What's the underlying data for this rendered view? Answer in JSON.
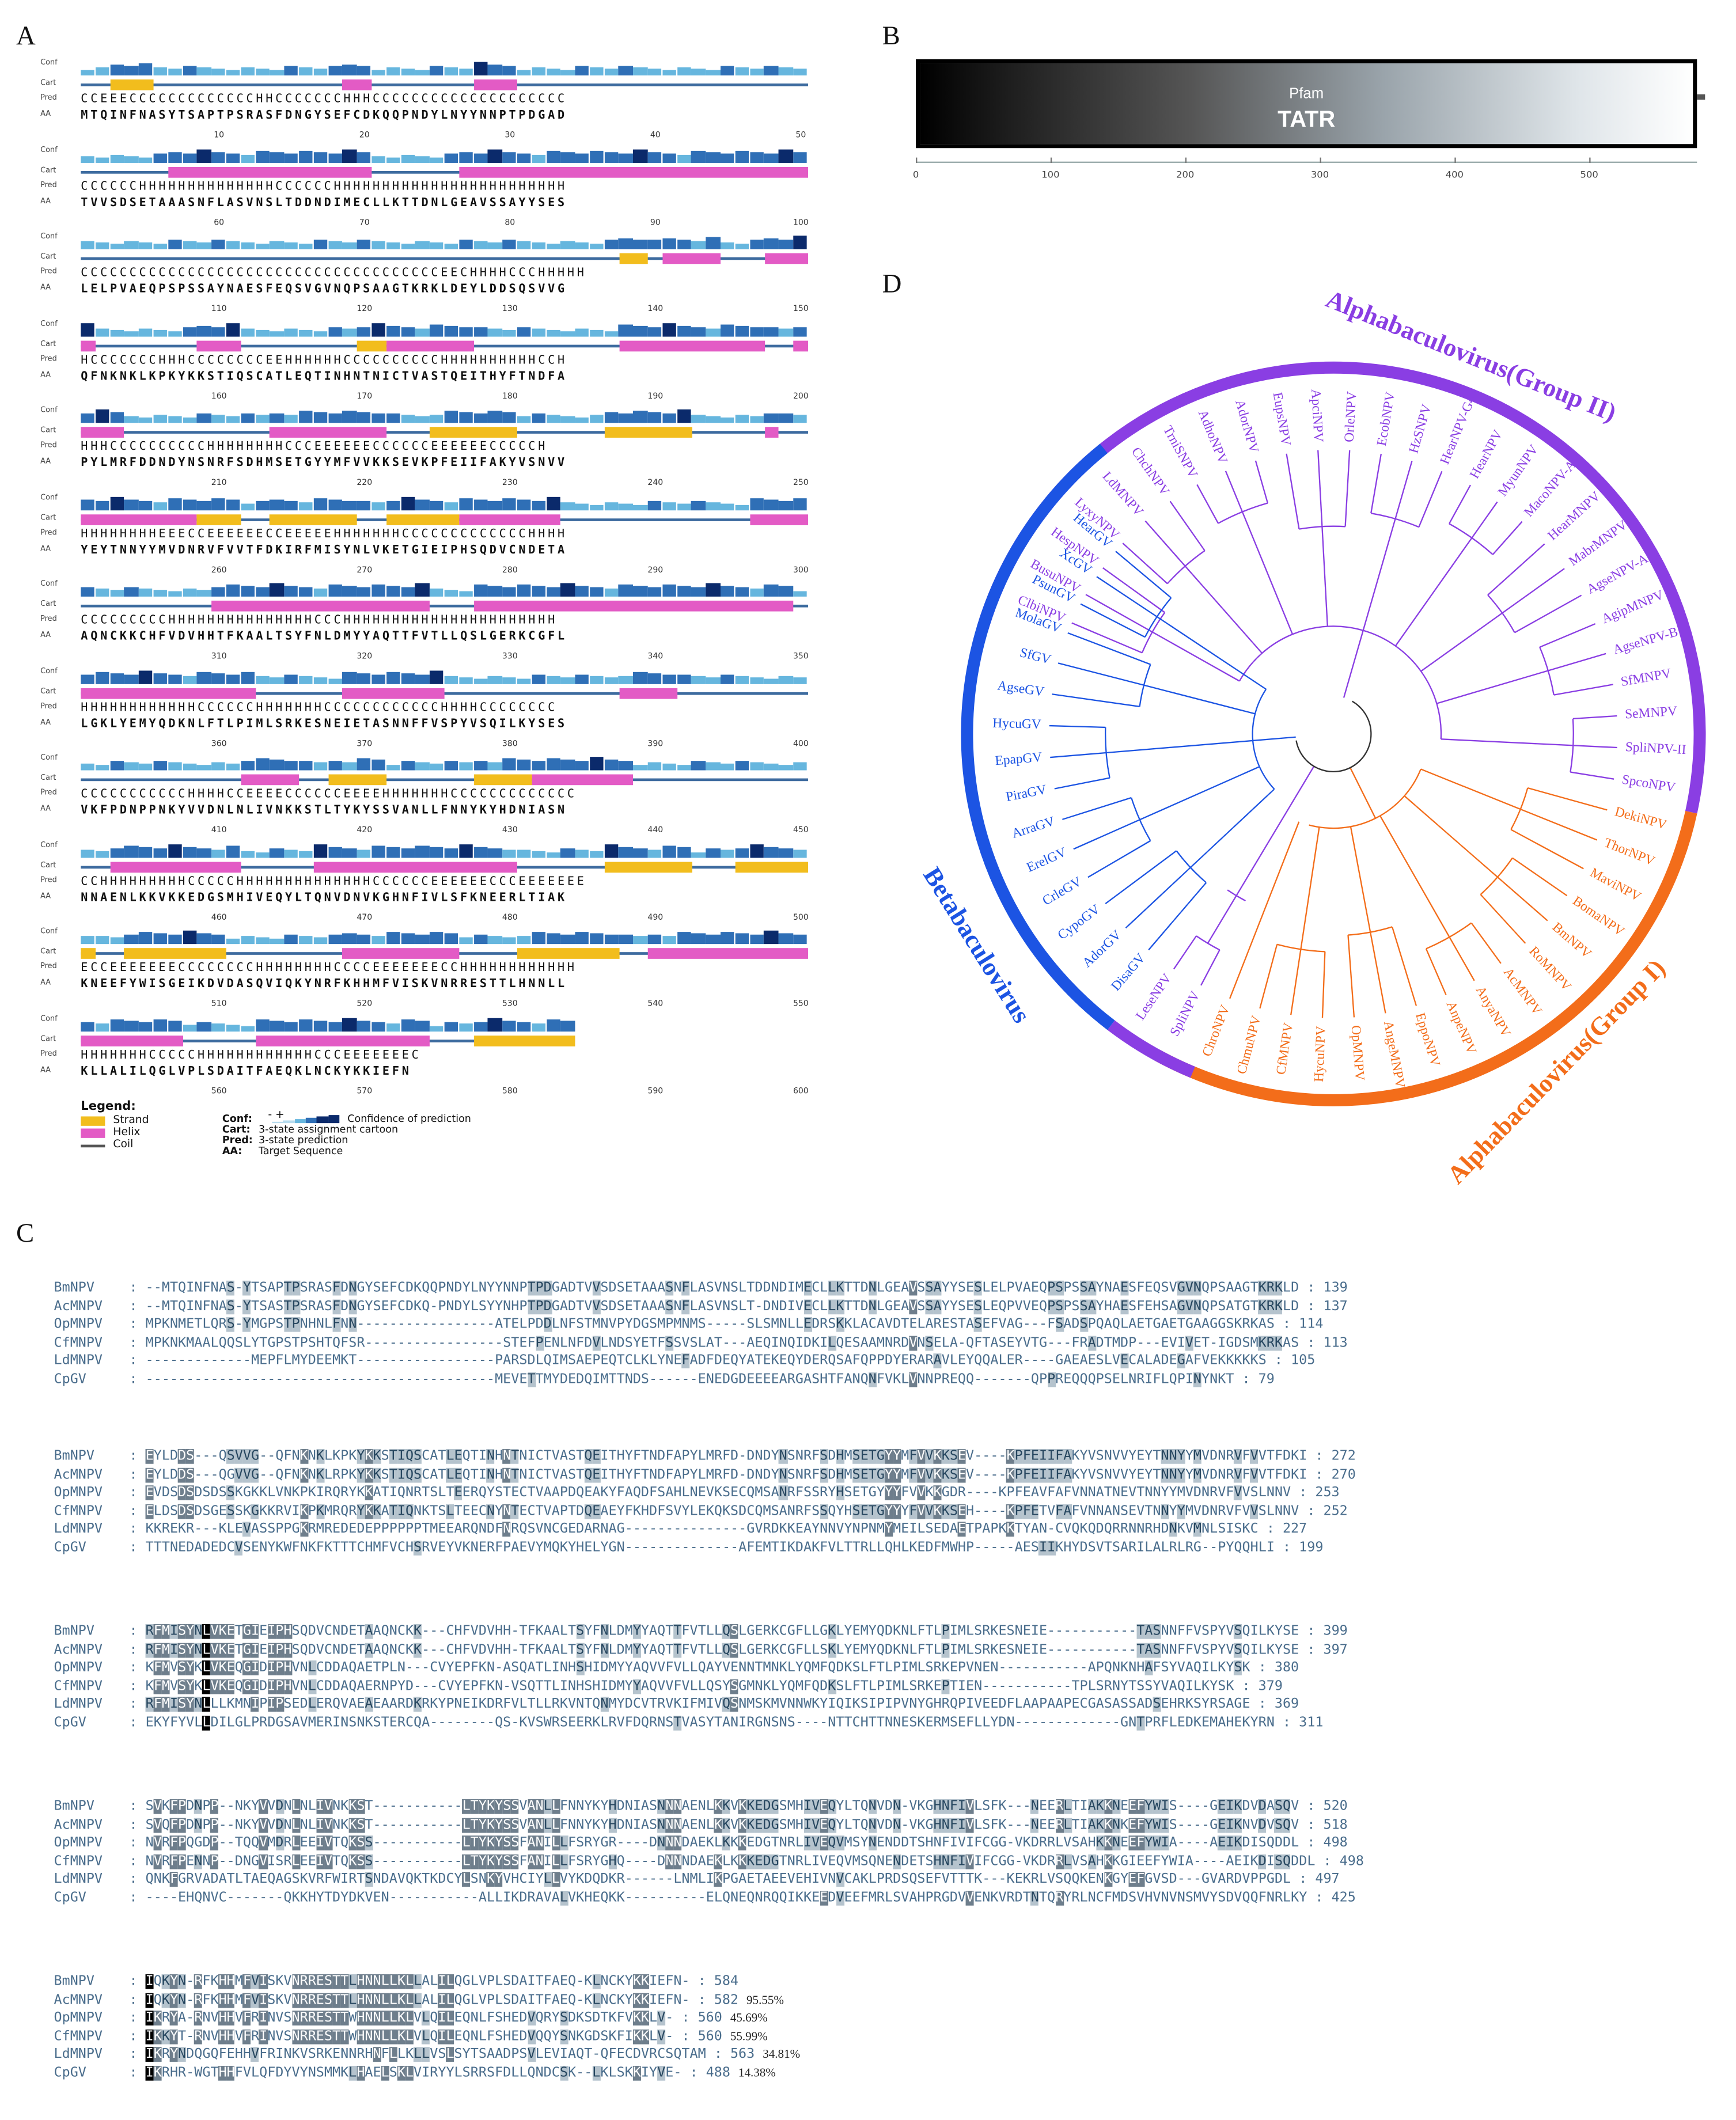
{
  "panels": {
    "a": "A",
    "b": "B",
    "c": "C",
    "d": "D"
  },
  "psipred": {
    "row_labels": {
      "conf": "Conf",
      "cart": "Cart",
      "pred": "Pred",
      "aa": "AA"
    },
    "rows": [
      {
        "pred": "CCEEECCCCCCCCCCCCCHHCCCCCCCHHHCCCCCCCCCCCCCCCCCCCC",
        "aa": "MTQINFNASYTSAPTPSRASFDNGYSEFCDKQQPNDYLNYYNNPTPDGAD",
        "ticks": [
          "10",
          "20",
          "30",
          "40",
          "50"
        ]
      },
      {
        "pred": "CCCCCCHHHHHHHHHHHHHHCCCCCCHHHHHHHHHHHHHHHHHHHHHHHH",
        "aa": "TVVSDSETAAASNFLASVNSLTDDNDIMECLLKTTDNLGEAVSSAYYSES",
        "ticks": [
          "60",
          "70",
          "80",
          "90",
          "100"
        ]
      },
      {
        "pred": "CCCCCCCCCCCCCCCCCCCCCCCCCCCCCCCCCCCCCEECHHHHCCCHHHHH",
        "aa": "LELPVAEQPSPSSAYNAESFEQSVGVNQPSAAGTKRKLDEYLDDSQSVVG",
        "ticks": [
          "110",
          "120",
          "130",
          "140",
          "150"
        ]
      },
      {
        "pred": "HCCCCCCCHHHCCCCCCCCEEHHHHHHCCCCCCCCCCHHHHHHHHHHCCH",
        "aa": "QFNKNKLKPKYKKSTIQSCATLEQTINHNTNICTVASTQEITHYFTNDFA",
        "ticks": [
          "160",
          "170",
          "180",
          "190",
          "200"
        ]
      },
      {
        "pred": "HHHCCCCCCCCCCHHHHHHHHCCCEEEEEECCCCCCEEEEEECCCCCH",
        "aa": "PYLMRFDDNDYNSNRFSDHMSETGYYMFVVKKSEVKPFEIIFAKYVSNVV",
        "ticks": [
          "210",
          "220",
          "230",
          "240",
          "250"
        ]
      },
      {
        "pred": "HHHHHHHHEEECCEEEEEECCEEEEEHHHHHHHCCCCCCCCCCCCCHHHH",
        "aa": "YEYTNNYYMVDNRVFVVTFDKIRFMISYNLVKETGIEIPHSQDVCNDETA",
        "ticks": [
          "260",
          "270",
          "280",
          "290",
          "300"
        ]
      },
      {
        "pred": "CCCCCCCCCHHHHHHHHHHHHHHHCCCHHHHHHHHHHHHHHHHHHHHHH",
        "aa": "AQNCKKCHFVDVHHTFKAALTSYFNLDMYYAQTTFVTLLQSLGERKCGFL",
        "ticks": [
          "310",
          "320",
          "330",
          "340",
          "350"
        ]
      },
      {
        "pred": "HHHHHHHHHHHHCCCCCCHHHHHHHCCCCCCCCCCCCHHHHCCCCCCCC",
        "aa": "LGKLYEMYQDKNLFTLPIMLSRKESNEIETASNNFFVSPYVSQILKYSES",
        "ticks": [
          "360",
          "370",
          "380",
          "390",
          "400"
        ]
      },
      {
        "pred": "CCCCCCCCCCCHHHHCCEEEECCCCCCEEEEHHHHHHHCCCCCCCCCCCCC",
        "aa": "VKFPDNPPNKYVVDNLNLIVNKKSTLTYKYSSVANLLFNNYKYHDNIASN",
        "ticks": [
          "410",
          "420",
          "430",
          "440",
          "450"
        ]
      },
      {
        "pred": "CCHHHHHHHHHCCCCCHHHHHHHHHHHHHHCCCCCCEEEEEECCCEEEEEEE",
        "aa": "NNAENLKKVKKEDGSMHIVEQYLTQNVDNVKGHNFIVLSFKNEERLTIAK",
        "ticks": [
          "460",
          "470",
          "480",
          "490",
          "500"
        ]
      },
      {
        "pred": "ECCEEEEEEECCCCCCCCHHHHHHHHCCCCEEEEEEECCHHHHHHHHHHHH",
        "aa": "KNEEFYWISGEIKDVDASQVIQKYNRFKHHMFVISKVNRRESTTLHNNLL",
        "ticks": [
          "510",
          "520",
          "530",
          "540",
          "550"
        ]
      },
      {
        "pred": "HHHHHHHCCCCCHHHHHHHHHHHHCCCEEEEEEEC",
        "aa": "KLLALILQGLVPLSDAITFAEQKLNCKYKKIEFN",
        "ticks": [
          "560",
          "570",
          "580",
          "590",
          "600"
        ]
      }
    ],
    "legend": {
      "title": "Legend:",
      "items": [
        {
          "label": "Strand",
          "color": "#f2bd1d"
        },
        {
          "label": "Helix",
          "color": "#e35bc5"
        },
        {
          "label": "Coil",
          "color": "#555555"
        }
      ],
      "keys": [
        {
          "k": "Conf:",
          "v": "Confidence of prediction"
        },
        {
          "k": "Cart:",
          "v": "3-state assignment cartoon"
        },
        {
          "k": "Pred:",
          "v": "3-state prediction"
        },
        {
          "k": "AA:",
          "v": "Target Sequence"
        }
      ],
      "conf_signs": "- +"
    }
  },
  "domain": {
    "source": "Pfam",
    "name": "TATR",
    "axis_ticks": [
      "0",
      "100",
      "200",
      "300",
      "400",
      "500"
    ],
    "axis_max": 580
  },
  "alignment": {
    "blocks": [
      {
        "rows": [
          {
            "name": "BmNPV",
            "seq": "--MTQINFNAS-YTSAPTPSRASFDNGYSEFCDKQQPNDYLNYYNNPTPDGADTVVSDSETAAASNFLASVNSLTDDNDIMECLLKTTDNLGEAVSSAYYSESLELPVAEQPSPSSAYNAESFEQSVGVNQPSAAGTKRKLD",
            "end": "139"
          },
          {
            "name": "AcMNPV",
            "seq": "--MTQINFNAS-YTSASTPSRASFDNGYSEFCDKQ-PNDYLSYYNHPTPDGADTVVSDSETAAASNFLASVNSLT-DNDIVECLLKTTDNLGEAVSSAYYSESLEQPVVEQPSPSSAYHAESFEHSAGVNQPSATGTKRKLD",
            "end": "137"
          },
          {
            "name": "OpMNPV",
            "seq": "MPKNMETLQRS-YMGPSTPNHNLFNN-----------------ATELPDDLNFSTMNVPYDGSMPMNMS-----SLSMNLLEDRSKKLACAVDTELARESTASEFVAG---FSADSPQAQLAETGAETGAAGGSKRKAS",
            "end": "114"
          },
          {
            "name": "CfMNPV",
            "seq": "MPKNKMAALQQSLYTGPSTPSHTQFSR-----------------STEFPENLNFDVLNDSYETFSSVSLAT---AEQINQIDKILQESAAMNRDVNSELA-QFTASEYVTG---FRADTMDP---EVIVET-IGDSMKRKAS",
            "end": "113"
          },
          {
            "name": "LdMNPV",
            "seq": "-------------MEPFLMYDEEMKT-----------------PARSDLQIMSAEPEQTCLKLYNEFADFDEQYATEKEQYDERQSAFQPPDYERARAVLEYQQALER----GAEAESLVECALADEGAFVEKKKKKS",
            "end": "105"
          },
          {
            "name": "CpGV",
            "seq": "-------------------------------------------MEVETTMYDEDQIMTTNDS------ENEDGDEEEEARGASHTFANQNFVKLVNNPREQQ-------QPPREQQQPSELNRIFLQPINYNKT",
            "end": "79"
          }
        ]
      },
      {
        "rows": [
          {
            "name": "BmNPV",
            "seq": "EYLDDS---QSVVG--QFNKNKLKPKYKKSTIQSCATLEQTINHNTNICTVASTQEITHYFTNDFAPYLMRFD-DNDYNSNRFSDHMSETGYYMFVVKKSEV----KPFEIIFAKYVSNVVYEYTNNYYMVDNRVFVVTFDKI",
            "end": "272"
          },
          {
            "name": "AcMNPV",
            "seq": "EYLDDS---QGVVG--QFNKNKLRPKYKKSTIQSCATLEQTINHNTNICTVASTQEITHYFTNDFAPYLMRFD-DNDYNSNRFSDHMSETGYYMFVVKKSEV----KPFEIIFAKYVSNVVYEYTNNYYMVDNRVFVVTFDKI",
            "end": "270"
          },
          {
            "name": "OpMNPV",
            "seq": "EVDSDSDSDSSKGKKLVNKPKIRQRYKKATIQNRTSLTEERQYSTECTVAAPDQEAKYFAQDFSAHLNEVKSECQMSANRFSSRYHSETGYYYFVVKKGDR----KPFEAVFAFVNNATNEVTNNYYMVDNRVFVVSLNNV",
            "end": "253"
          },
          {
            "name": "CfMNPV",
            "seq": "ELDSDSDSGESSKGKKRVIKPKMRQRYKKATIQNKTSLTEECNYNTECTVAPTDQEAEYFKHDFSVYLEKQKSDCQMSANRFSSQYHSETGYYYFVVKKSEH----KPFETVFAFVNNANSEVTNNYYMVDNRVFVVSLNNV",
            "end": "252"
          },
          {
            "name": "LdMNPV",
            "seq": "KKREKR---KLEVASSPPGKRMREDEDEPPPPPPTMEEARQNDFNRQSVNCGEDARNAG---------------GVRDKKEAYNNVYNPNMYMEILSEDAETPAPKKTYAN-CVQKQDQRRNNRHDNKVMNLSISKC",
            "end": "227"
          },
          {
            "name": "CpGV",
            "seq": "TTTNEDADEDCVSENYKWFNKFKTTTCHMFVCHSRVEYVKNERFPAEVYMQKYHELYGN--------------AFEMTIKDAKFVLTTRLLQHLKEDFMWHP-----AESIIKHYDSVTSARILALRLRG--PYQQHLI",
            "end": "199"
          }
        ]
      },
      {
        "rows": [
          {
            "name": "BmNPV",
            "seq": "RFMISYNLVKETGIEIPHSQDVCNDETAAQNCKK---CHFVDVHH-TFKAALTSYFNLDMYYAQTTFVTLLQSLGERKCGFLLGKLYEMYQDKNLFTLPIMLSRKESNEIE-----------TASNNFFVSPYVSQILKYSE",
            "end": "399"
          },
          {
            "name": "AcMNPV",
            "seq": "RFMISYNLVKETGIEIPHSQDVCNDETAAQNCKK---CHFVDVHH-TFKAALTSYFNLDMYYAQTTFVTLLQSLGERKCGFLLSKLYEMYQDKNLFTLPIMLSRKESNEIE-----------TASNNFFVSPYVSQILKYSE",
            "end": "397"
          },
          {
            "name": "OpMNPV",
            "seq": "KFMVSYKLVKEQGIDIPHVNLCDDAQAETPLN---CVYEPFKN-ASQATLINHSHIDMYYAQVVFVLLQAYVENNTMNKLYQMFQDKSLFTLPIMLSRKEPVNEN-----------APQNKNHAFSYVAQILKYSK",
            "end": "380"
          },
          {
            "name": "CfMNPV",
            "seq": "KFMVSYKLVKEQGIDIPHVNLCDDAQAERNPYD---CVYEPFKN-VSQTTLINHSHIDMYYAQVVFVLLQSYSGMNKLYQMFQDKSLFTLPIMLSRKEPTIEN-----------TPLSRNYTSSYVAQILKYSK",
            "end": "379"
          },
          {
            "name": "LdMNPV",
            "seq": "RFMISYNLLLKMNIPIPSEDLERQVAEAEAARDKRKYPNEIKDRFVLTLLRKVNTQNMYDCVTRVKIFMIVQSNMSKMVNNWKYIQIKSIPIPVNYGHRQPIVEEDFLAAPAAPECGASASSADSEHRKSYRSAGE",
            "end": "369"
          },
          {
            "name": "CpGV",
            "seq": "EKYFYVLLDILGLPRDGSAVMERINSNKSTERCQA--------QS-KVSWRSEERKLRVFDQRNSTVASYTANIRGNSNS----NTTCHTTNNESKERMSEFLLYDN-------------GNTPRFLEDKEMAHEKYRN",
            "end": "311"
          }
        ]
      },
      {
        "rows": [
          {
            "name": "BmNPV",
            "seq": "SVKFPDNPP--NKYVVDNLNLIVNKKST-----------LTYKYSSVANLLFNNYKYHDNIASNNNAENLKKVKKEDGSMHIVEQYLTQNVDN-VKGHNFIVLSFK---NEERLTIAKKNEEFYWIS----GEIKDVDASQV",
            "end": "520"
          },
          {
            "name": "AcMNPV",
            "seq": "SVQFPDNPP--NKYVVDNLNLIVNKKST-----------LTYKYSSVANLLFNNYKYHDNIASNNNAENLKKVKKEDGSMHIVEQYLTQNVDN-VKGHNFIVLSFK---NEERLTIAKKNKEFYWIS----GEIKNVDVSQV",
            "end": "518"
          },
          {
            "name": "OpMNPV",
            "seq": "NVRFPQGDP--TQQVMDRLEEIVTQKSS-----------LTYKYSSFANILLFSRYGR----DNNNDAEKLKKKEDGTNRLIVEQVMSYNENDDTSHNFIVIFCGG-VKDRRLVSAHKKNEEFYWIA----AEIKDISQDDL",
            "end": "498"
          },
          {
            "name": "CfMNPV",
            "seq": "NVRFPENNP--DNGVISRLEEIVTQKSS-----------LTYKYSSFANILLFSRYGHQ----DNNNDAEKLKKKEDGTNRLIVEQVMSQNENDETSHNFIVIFCGG-VKDRRLVSAHKKGIEEFYWIA----AEIKDISQDDL",
            "end": "498"
          },
          {
            "name": "LdMNPV",
            "seq": "QNKFGRVADATLTAEQAGSKVRFWIRTSNDAVQKTKDCYLSNKYVHCIYLLVYKDQDKR------LNMLIKPGAETAEEVEHIVNVCAKLPRDSQSEFVTTTK---KEKRLVSQQKENKGYEFGVSD---GVARDVPPGDL",
            "end": "497"
          },
          {
            "name": "CpGV",
            "seq": "----EHQNVC-------QKKHYTDYDKVEN-----------ALLIKDRAVALVKHEQKK----------ELQNEQNRQQIKKEEDVEEFMRLSVAHPRGDVVENKVRDTNTQRYRLNCFMDSVHVNVNSMVYSDVQQFNRLKY",
            "end": "425"
          }
        ]
      },
      {
        "rows": [
          {
            "name": "BmNPV",
            "seq": "IQKYN-RFKHHMFVISKVNRRESTTLHNNLLKLLALILQGLVPLSDAITFAEQ-KLNCKYKKIEFN-",
            "end": "584",
            "pct": ""
          },
          {
            "name": "AcMNPV",
            "seq": "IQKYN-RFKHHMFVISKVNRRESTTLHNNLLKLLALILQGLVPLSDAITFAEQ-KLNCKYKKIEFN-",
            "end": "582",
            "pct": "95.55%"
          },
          {
            "name": "OpMNPV",
            "seq": "IKRYA-RNVHHVFRINVSNRRESTTWHNNLLKLVLQILEQNLFSHEDVQRYSDKSDTKFVKKLV-",
            "end": "560",
            "pct": "45.69%"
          },
          {
            "name": "CfMNPV",
            "seq": "IKKYT-RNVHHVFRINVSNRRESTTWHNNLLKLVLQILEQNLFSHEDVQQYSNKGDSKFIKKLV-",
            "end": "560",
            "pct": "55.99%"
          },
          {
            "name": "LdMNPV",
            "seq": "IKRYNDQGQFEHHVFRINKVSRKENNRHNFLLKLLVSLSYTSAADPSVLEVIAQT-QFECDVRCSQTAM",
            "end": "563",
            "pct": "34.81%"
          },
          {
            "name": "CpGV",
            "seq": "IKRHR-WGTHHFVLQFDYVYNSMMKLHAELSKLVIRYYLSRRSFDLLQNDCSK--LKLSKKIYVE-",
            "end": "488",
            "pct": "14.38%"
          }
        ]
      }
    ]
  },
  "tree": {
    "groups": [
      {
        "label": "Alphabaculovirus(Group II)",
        "color": "#8a3ee3"
      },
      {
        "label": "Alphabaculovirus(Group I)",
        "color": "#f36d1a"
      },
      {
        "label": "Betabaculovirus",
        "color": "#1c54e3"
      }
    ],
    "leaves": [
      {
        "name": "ClbiNPV",
        "g": 0
      },
      {
        "name": "BusuNPV",
        "g": 0
      },
      {
        "name": "HespNPV",
        "g": 0
      },
      {
        "name": "LyxyNPV",
        "g": 0
      },
      {
        "name": "LdMNPV",
        "g": 0
      },
      {
        "name": "ChchNPV",
        "g": 0
      },
      {
        "name": "TrniSNPV",
        "g": 0
      },
      {
        "name": "AdhoNPV",
        "g": 0
      },
      {
        "name": "AdorNPV",
        "g": 0
      },
      {
        "name": "EupsNPV",
        "g": 0
      },
      {
        "name": "ApciNPV",
        "g": 0
      },
      {
        "name": "OrleNPV",
        "g": 0
      },
      {
        "name": "EcobNPV",
        "g": 0
      },
      {
        "name": "HzSNPV",
        "g": 0
      },
      {
        "name": "HearNPV-G4",
        "g": 0
      },
      {
        "name": "HearNPV",
        "g": 0
      },
      {
        "name": "MyunNPV",
        "g": 0
      },
      {
        "name": "MacoNPV-A",
        "g": 0
      },
      {
        "name": "HearMNPV",
        "g": 0
      },
      {
        "name": "MabrMNPV",
        "g": 0
      },
      {
        "name": "AgseNPV-A",
        "g": 0
      },
      {
        "name": "AgipMNPV",
        "g": 0
      },
      {
        "name": "AgseNPV-B",
        "g": 0
      },
      {
        "name": "SfMNPV",
        "g": 0
      },
      {
        "name": "SeMNPV",
        "g": 0
      },
      {
        "name": "SpliNPV-II",
        "g": 0
      },
      {
        "name": "SpcoNPV",
        "g": 0
      },
      {
        "name": "DekiNPV",
        "g": 1
      },
      {
        "name": "ThorNPV",
        "g": 1
      },
      {
        "name": "MaviNPV",
        "g": 1
      },
      {
        "name": "BomaNPV",
        "g": 1
      },
      {
        "name": "BmNPV",
        "g": 1
      },
      {
        "name": "RoMNPV",
        "g": 1
      },
      {
        "name": "AcMNPV",
        "g": 1
      },
      {
        "name": "AnyaNPV",
        "g": 1
      },
      {
        "name": "AnpeNPV",
        "g": 1
      },
      {
        "name": "EppoNPV",
        "g": 1
      },
      {
        "name": "AngeMNPV",
        "g": 1
      },
      {
        "name": "OpMNPV",
        "g": 1
      },
      {
        "name": "HycuNPV",
        "g": 1
      },
      {
        "name": "CfMNPV",
        "g": 1
      },
      {
        "name": "ChmuNPV",
        "g": 1
      },
      {
        "name": "ChroNPV",
        "g": 1
      },
      {
        "name": "SpliNPV",
        "g": 0
      },
      {
        "name": "LeseNPV",
        "g": 0
      },
      {
        "name": "DisaGV",
        "g": 2
      },
      {
        "name": "AdorGV",
        "g": 2
      },
      {
        "name": "CypoGV",
        "g": 2
      },
      {
        "name": "CrleGV",
        "g": 2
      },
      {
        "name": "ErelGV",
        "g": 2
      },
      {
        "name": "ArraGV",
        "g": 2
      },
      {
        "name": "PiraGV",
        "g": 2
      },
      {
        "name": "EpapGV",
        "g": 2
      },
      {
        "name": "HycuGV",
        "g": 2
      },
      {
        "name": "AgseGV",
        "g": 2
      },
      {
        "name": "SfGV",
        "g": 2
      },
      {
        "name": "MolaGV",
        "g": 2
      },
      {
        "name": "PsunGV",
        "g": 2
      },
      {
        "name": "XcGV",
        "g": 2
      },
      {
        "name": "HearGV",
        "g": 2
      }
    ]
  },
  "colors": {
    "strand": "#f2bd1d",
    "helix": "#e35bc5",
    "coil": "#555555",
    "conf_dark": "#0b2a6b",
    "conf_mid": "#2f6fb6",
    "conf_light": "#66b6de",
    "conf_pale": "#b7dcef"
  }
}
